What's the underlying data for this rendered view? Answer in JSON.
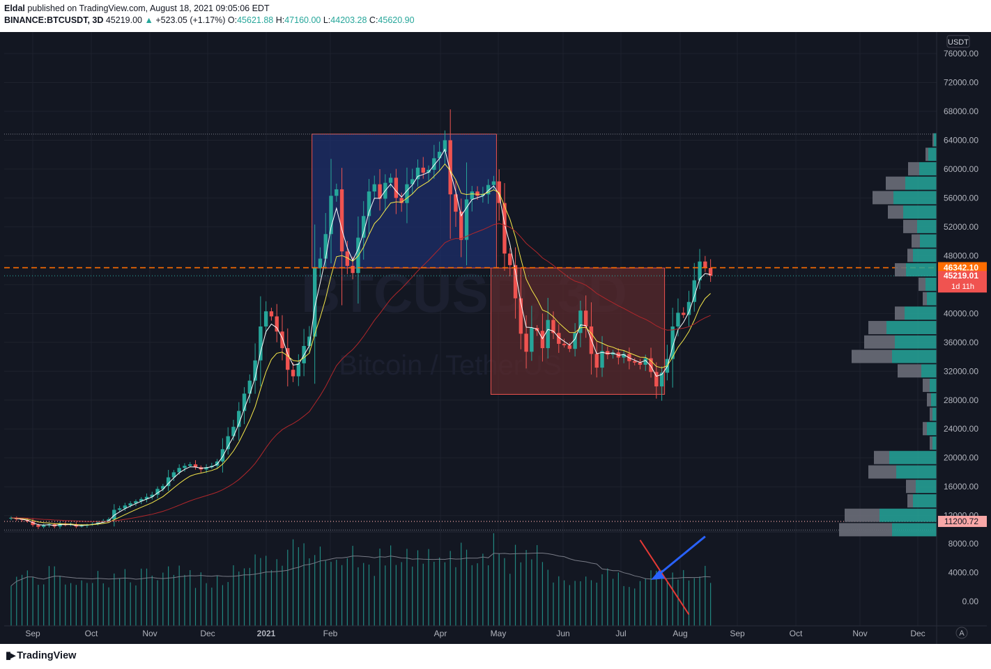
{
  "header": {
    "author": "Eldal",
    "published": "published on TradingView.com, August 18, 2021 09:05:06 EDT",
    "symbol": "BINANCE:BTCUSDT, 3D",
    "last": "45219.00",
    "change_arrow": "▲",
    "change": "+523.05 (+1.17%)",
    "ohlc": [
      {
        "label": "O:",
        "value": "45621.88"
      },
      {
        "label": "H:",
        "value": "47160.00"
      },
      {
        "label": "L:",
        "value": "44203.28"
      },
      {
        "label": "C:",
        "value": "45620.90"
      }
    ]
  },
  "footer": {
    "brand": "TradingView",
    "brand_icon": "tradingview-logo-icon"
  },
  "scale_button": "A",
  "colors": {
    "up": "#26a69a",
    "down": "#ef5350",
    "bg": "#131722",
    "ema_fast": "#ffffff",
    "ema_mid": "#f7e94a",
    "ema_slow": "#b2272b",
    "rect_blue": "#1e2f6b",
    "rect_red": "#5a2a2c",
    "arrow": "#2962ff"
  },
  "chart_data": {
    "type": "candlestick",
    "currency_badge": "USDT",
    "watermark_symbol": "BTCUSD, 3D",
    "watermark_desc": "Bitcoin / TetherUS",
    "price_ticks": [
      "76000.00",
      "72000.00",
      "68000.00",
      "64000.00",
      "60000.00",
      "56000.00",
      "52000.00",
      "48000.00",
      "44000.00",
      "40000.00",
      "36000.00",
      "32000.00",
      "28000.00",
      "24000.00",
      "20000.00",
      "16000.00",
      "12000.00"
    ],
    "volume_ticks": [
      "8000.00",
      "4000.00",
      "0.00"
    ],
    "x_labels": [
      "Sep",
      "Oct",
      "Nov",
      "Dec",
      "2021",
      "Feb",
      "Apr",
      "May",
      "Jun",
      "Jul",
      "Aug",
      "Sep",
      "Oct",
      "Nov",
      "Dec"
    ],
    "price_markers": [
      {
        "value": 46342.1,
        "label": "46342.10",
        "color": "#ff6d00",
        "style": "dashed"
      },
      {
        "value": 45219.01,
        "label": "45219.01",
        "sublabel": "1d 11h",
        "color": "#f05350",
        "style": "dotted"
      },
      {
        "value": 11200.72,
        "label": "11200.72",
        "color": "#f8a7a7",
        "style": "dotted"
      }
    ],
    "high_line": 64854,
    "low_line": 10000,
    "closes": [
      11700,
      11500,
      11400,
      11200,
      10700,
      10450,
      10650,
      10800,
      10500,
      10900,
      10700,
      10800,
      10500,
      10600,
      10750,
      10850,
      11050,
      11250,
      11500,
      12800,
      13000,
      13400,
      13700,
      14000,
      14300,
      14600,
      14900,
      15700,
      16100,
      17300,
      18000,
      18600,
      18900,
      19100,
      18700,
      18400,
      18700,
      18900,
      19500,
      21200,
      23000,
      24300,
      26500,
      28900,
      30700,
      33500,
      38200,
      40300,
      39600,
      37500,
      35200,
      32200,
      31300,
      33100,
      35500,
      36800,
      46300,
      47600,
      51000,
      56300,
      57200,
      48600,
      46600,
      45600,
      50500,
      53500,
      56900,
      57900,
      55900,
      58100,
      58800,
      56000,
      55300,
      57900,
      58600,
      60200,
      59500,
      59900,
      61500,
      62400,
      64000,
      56500,
      54100,
      50200,
      55800,
      56900,
      56300,
      56500,
      57800,
      58300,
      55300,
      48300,
      46700,
      42100,
      37200,
      34700,
      38000,
      37600,
      35200,
      39100,
      37300,
      35800,
      35600,
      35100,
      37300,
      40400,
      38200,
      34400,
      32500,
      34800,
      34300,
      34600,
      33900,
      34400,
      33400,
      33200,
      32900,
      33800,
      31900,
      29900,
      31800,
      33700,
      38200,
      40100,
      39800,
      41600,
      44600,
      47200,
      46300,
      45219
    ],
    "volume_scale_max": 9500,
    "volume_peak": 17500,
    "ema_lengths": [
      3,
      8,
      35
    ],
    "boxes": [
      {
        "name": "bullish-range-box",
        "from_bar": 56,
        "to_bar": 89,
        "high": 64854,
        "low": 46300,
        "color": "#1e2f6b"
      },
      {
        "name": "bearish-range-box",
        "from_bar": 89,
        "to_bar": 120,
        "high": 46300,
        "low": 28800,
        "color": "#5a2a2c"
      }
    ],
    "profile": [
      {
        "y": 64000,
        "g": 2,
        "t": 4
      },
      {
        "y": 62000,
        "g": 4,
        "t": 12
      },
      {
        "y": 60000,
        "g": 16,
        "t": 25
      },
      {
        "y": 58000,
        "g": 28,
        "t": 45
      },
      {
        "y": 56000,
        "g": 30,
        "t": 62
      },
      {
        "y": 54000,
        "g": 22,
        "t": 48
      },
      {
        "y": 52000,
        "g": 20,
        "t": 28
      },
      {
        "y": 50000,
        "g": 12,
        "t": 24
      },
      {
        "y": 48000,
        "g": 8,
        "t": 34
      },
      {
        "y": 46000,
        "g": 16,
        "t": 44
      },
      {
        "y": 44000,
        "g": 10,
        "t": 16
      },
      {
        "y": 42000,
        "g": 6,
        "t": 14
      },
      {
        "y": 40000,
        "g": 14,
        "t": 46
      },
      {
        "y": 38000,
        "g": 26,
        "t": 72
      },
      {
        "y": 36000,
        "g": 44,
        "t": 60
      },
      {
        "y": 34000,
        "g": 58,
        "t": 64
      },
      {
        "y": 32000,
        "g": 34,
        "t": 22
      },
      {
        "y": 30000,
        "g": 10,
        "t": 10
      },
      {
        "y": 28000,
        "g": 6,
        "t": 8
      },
      {
        "y": 26000,
        "g": 4,
        "t": 6
      },
      {
        "y": 24000,
        "g": 6,
        "t": 14
      },
      {
        "y": 22000,
        "g": 4,
        "t": 6
      },
      {
        "y": 20000,
        "g": 22,
        "t": 68
      },
      {
        "y": 18000,
        "g": 40,
        "t": 58
      },
      {
        "y": 16000,
        "g": 14,
        "t": 30
      },
      {
        "y": 14000,
        "g": 8,
        "t": 34
      },
      {
        "y": 12000,
        "g": 50,
        "t": 82
      },
      {
        "y": 10000,
        "g": 76,
        "t": 64
      }
    ],
    "annotations": [
      {
        "name": "volume-downtrend-line",
        "type": "line",
        "from": {
          "bar": 116,
          "vol": 8500
        },
        "to": {
          "bar": 125,
          "vol": -1800
        },
        "color": "#e53935"
      },
      {
        "name": "blue-arrow",
        "type": "arrow",
        "from": {
          "bar": 128,
          "vol": 9000
        },
        "to": {
          "bar": 118,
          "vol": 3000
        },
        "color": "#2962ff"
      }
    ]
  }
}
